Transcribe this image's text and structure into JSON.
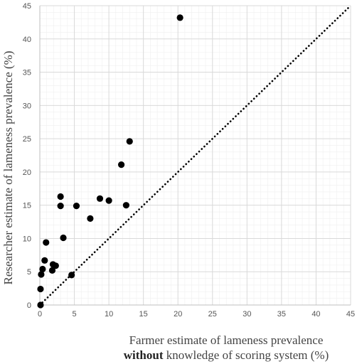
{
  "chart_data": {
    "type": "scatter",
    "xlabel_line1": "Farmer estimate of lameness prevalence",
    "xlabel_line2_bold": "without",
    "xlabel_line2_rest": " knowledge of scoring system (%)",
    "ylabel": "Researcher estimate of lameness prevalence (%)",
    "xlim": [
      0,
      45
    ],
    "ylim": [
      0,
      45
    ],
    "x_ticks": [
      "0",
      "5",
      "10",
      "15",
      "20",
      "25",
      "30",
      "35",
      "40",
      "45"
    ],
    "y_ticks": [
      "0",
      "5",
      "10",
      "15",
      "20",
      "25",
      "30",
      "35",
      "40",
      "45"
    ],
    "grid": true,
    "reference_line": {
      "style": "dotted",
      "from": [
        0,
        0
      ],
      "to": [
        45,
        45
      ]
    },
    "colors": {
      "points": "#000000",
      "major_grid": "#d9d9d9",
      "minor_grid": "#efefef",
      "reference_line": "#000000"
    },
    "points": [
      {
        "x": 0.1,
        "y": 0.0
      },
      {
        "x": 0.1,
        "y": 2.4
      },
      {
        "x": 0.2,
        "y": 4.6
      },
      {
        "x": 0.4,
        "y": 5.4
      },
      {
        "x": 0.7,
        "y": 6.7
      },
      {
        "x": 0.9,
        "y": 9.4
      },
      {
        "x": 1.8,
        "y": 5.2
      },
      {
        "x": 1.9,
        "y": 6.1
      },
      {
        "x": 2.3,
        "y": 5.9
      },
      {
        "x": 3.0,
        "y": 16.3
      },
      {
        "x": 3.0,
        "y": 14.9
      },
      {
        "x": 3.4,
        "y": 10.1
      },
      {
        "x": 4.6,
        "y": 4.5
      },
      {
        "x": 5.3,
        "y": 14.9
      },
      {
        "x": 7.3,
        "y": 13.0
      },
      {
        "x": 8.7,
        "y": 16.0
      },
      {
        "x": 10.0,
        "y": 15.7
      },
      {
        "x": 11.8,
        "y": 21.1
      },
      {
        "x": 12.5,
        "y": 15.0
      },
      {
        "x": 13.0,
        "y": 24.6
      },
      {
        "x": 20.3,
        "y": 43.2
      }
    ]
  }
}
